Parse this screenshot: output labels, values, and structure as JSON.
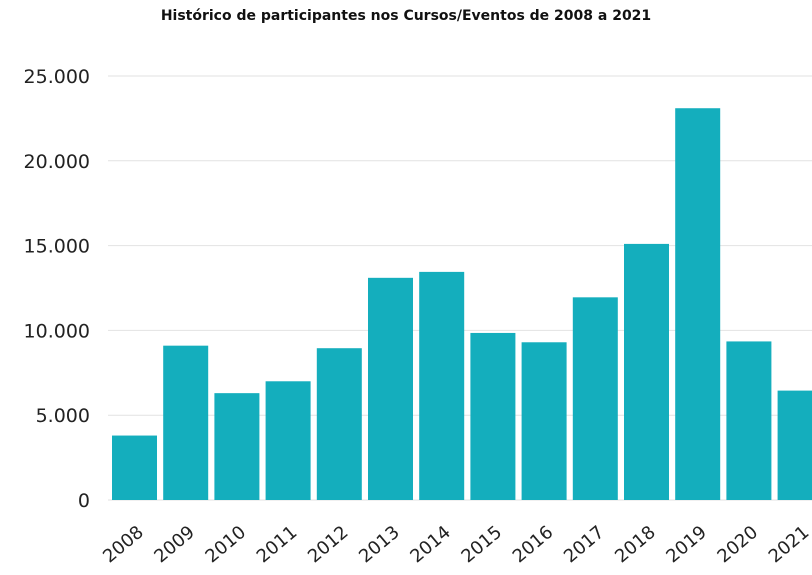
{
  "chart_data": {
    "type": "bar",
    "title": "Histórico de participantes nos Cursos/Eventos de 2008 a 2021",
    "xlabel": "",
    "ylabel": "",
    "categories": [
      "2008",
      "2009",
      "2010",
      "2011",
      "2012",
      "2013",
      "2014",
      "2015",
      "2016",
      "2017",
      "2018",
      "2019",
      "2020",
      "2021"
    ],
    "values": [
      3800,
      9100,
      6300,
      7000,
      8950,
      13100,
      13450,
      9850,
      9300,
      11950,
      15100,
      23100,
      9350,
      6450
    ],
    "ylim": [
      0,
      25000
    ],
    "yticks": [
      0,
      5000,
      10000,
      15000,
      20000,
      25000
    ],
    "ytick_labels": [
      "0",
      "5.000",
      "10.000",
      "15.000",
      "20.000",
      "25.000"
    ],
    "grid": true,
    "colors": {
      "bar": "#14aebd",
      "grid": "#e2e2e2",
      "text": "#222222"
    }
  }
}
